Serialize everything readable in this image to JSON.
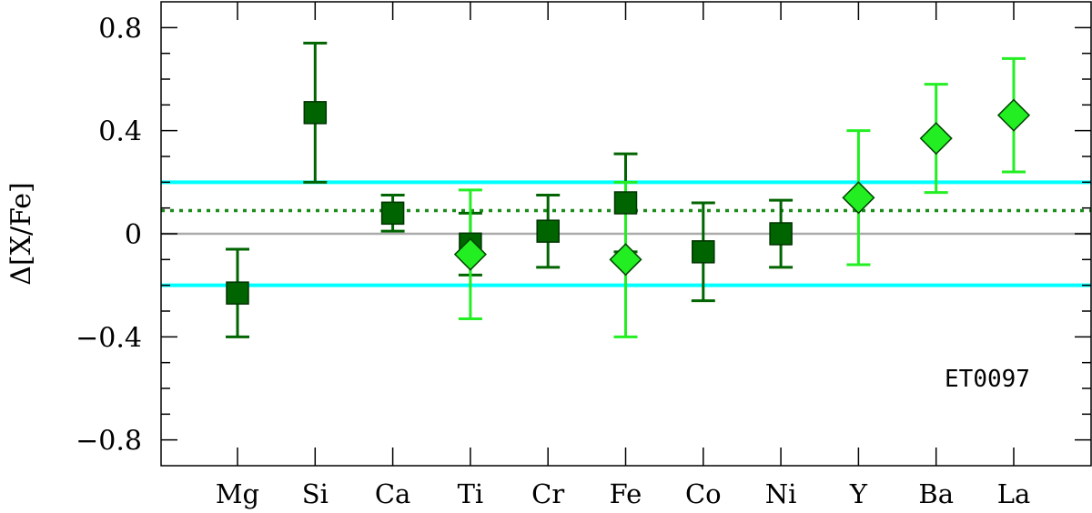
{
  "chart_data": {
    "type": "scatter",
    "ylabel": "Δ[X/Fe]",
    "annotation": "ET0097",
    "categories": [
      "Mg",
      "Si",
      "Ca",
      "Ti",
      "Cr",
      "Fe",
      "Co",
      "Ni",
      "Y",
      "Ba",
      "La"
    ],
    "ylim": [
      -0.9,
      0.9
    ],
    "yticks": [
      0.8,
      0.4,
      0,
      -0.4,
      -0.8
    ],
    "ytick_labels": [
      "0.8",
      "0.4",
      "0",
      "−0.4",
      "−0.8"
    ],
    "grid": false,
    "reference_lines": [
      {
        "y": 0.2,
        "style": "solid",
        "color": "#00ffff"
      },
      {
        "y": -0.2,
        "style": "solid",
        "color": "#00ffff"
      },
      {
        "y": 0.0,
        "style": "solid",
        "color": "#aaaaaa"
      },
      {
        "y": 0.09,
        "style": "dotted",
        "color": "#1a8c1a"
      }
    ],
    "series": [
      {
        "marker": "square",
        "color": "#006400",
        "errorbar_color": "#006400",
        "points": [
          {
            "x": "Mg",
            "y": -0.23,
            "err": 0.17
          },
          {
            "x": "Si",
            "y": 0.47,
            "err": 0.27
          },
          {
            "x": "Ca",
            "y": 0.08,
            "err": 0.07
          },
          {
            "x": "Ti",
            "y": -0.04,
            "err": 0.12
          },
          {
            "x": "Cr",
            "y": 0.01,
            "err": 0.14
          },
          {
            "x": "Fe",
            "y": 0.12,
            "err": 0.19
          },
          {
            "x": "Co",
            "y": -0.07,
            "err": 0.19
          },
          {
            "x": "Ni",
            "y": 0.0,
            "err": 0.13
          }
        ]
      },
      {
        "marker": "diamond",
        "color": "#22ee22",
        "errorbar_color": "#22ee22",
        "points": [
          {
            "x": "Ti",
            "y": -0.08,
            "err": 0.25
          },
          {
            "x": "Fe",
            "y": -0.1,
            "err": 0.3
          },
          {
            "x": "Y",
            "y": 0.14,
            "err": 0.26
          },
          {
            "x": "Ba",
            "y": 0.37,
            "err": 0.21
          },
          {
            "x": "La",
            "y": 0.46,
            "err": 0.22
          }
        ]
      }
    ]
  }
}
